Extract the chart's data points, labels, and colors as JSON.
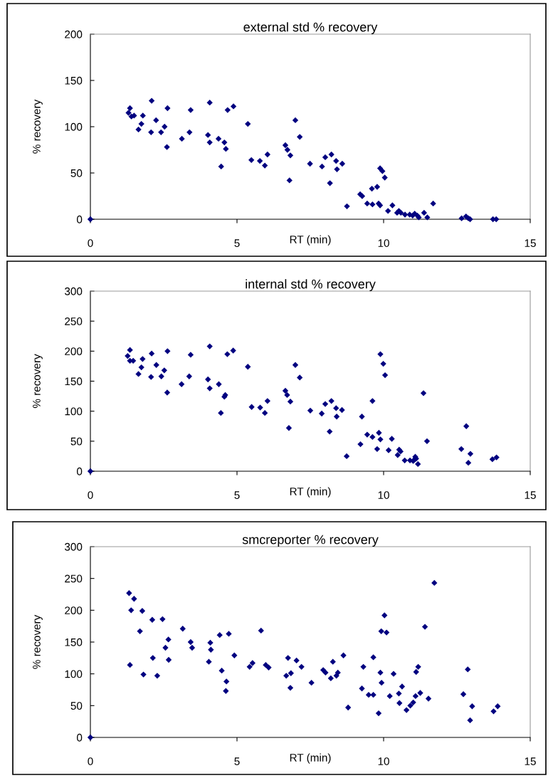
{
  "chart_data": [
    {
      "type": "scatter",
      "title": "external std % recovery",
      "xlabel": "RT (min)",
      "ylabel": "% recovery",
      "marker": "diamond",
      "color": "#000080",
      "xlim": [
        0,
        15
      ],
      "xticks": [
        0,
        5,
        10,
        15
      ],
      "ylim": [
        0,
        200
      ],
      "yticks": [
        0,
        50,
        100,
        150,
        200
      ],
      "x": [
        0,
        1.3,
        1.35,
        1.4,
        1.49,
        1.64,
        1.74,
        1.79,
        2.07,
        2.09,
        2.24,
        2.41,
        2.53,
        2.61,
        2.63,
        3.12,
        3.38,
        3.42,
        4.01,
        4.07,
        4.07,
        4.37,
        4.46,
        4.57,
        4.62,
        4.68,
        4.88,
        5.37,
        5.49,
        5.78,
        5.95,
        6.04,
        6.65,
        6.72,
        6.82,
        6.79,
        6.99,
        7.14,
        7.49,
        7.9,
        8.01,
        8.22,
        8.17,
        8.38,
        8.41,
        8.59,
        8.75,
        9.2,
        9.27,
        9.44,
        9.6,
        9.62,
        9.78,
        9.83,
        9.88,
        9.88,
        9.96,
        10.04,
        10.15,
        10.3,
        10.46,
        10.52,
        10.59,
        10.73,
        10.89,
        10.99,
        11.06,
        11.15,
        11.2,
        11.38,
        11.49,
        11.69,
        12.66,
        12.81,
        12.89,
        12.95,
        13.73,
        13.84
      ],
      "values": [
        0,
        115,
        120,
        111,
        112,
        97,
        103,
        112,
        94,
        128,
        107,
        94,
        100,
        78,
        120,
        87,
        94,
        118,
        91,
        83,
        126,
        87,
        57,
        83,
        76,
        118,
        122,
        103,
        64,
        63,
        58,
        70,
        80,
        75,
        69,
        42,
        107,
        89,
        60,
        57,
        67,
        70,
        39,
        63,
        54,
        60,
        14,
        27,
        25,
        17,
        33,
        16,
        35,
        17,
        55,
        15,
        52,
        45,
        9,
        15,
        7,
        9,
        7,
        5,
        5,
        4,
        6,
        4,
        2,
        7,
        2,
        17,
        1,
        3,
        1,
        0,
        0,
        0
      ]
    },
    {
      "type": "scatter",
      "title": "internal std % recovery",
      "xlabel": "RT (min)",
      "ylabel": "% recovery",
      "marker": "diamond",
      "color": "#000080",
      "xlim": [
        0,
        15
      ],
      "xticks": [
        0,
        5,
        10,
        15
      ],
      "ylim": [
        0,
        300
      ],
      "yticks": [
        0,
        50,
        100,
        150,
        200,
        250,
        300
      ],
      "x": [
        0,
        1.27,
        1.35,
        1.35,
        1.46,
        1.64,
        1.74,
        1.78,
        2.07,
        2.09,
        2.25,
        2.42,
        2.52,
        2.62,
        2.63,
        3.11,
        3.37,
        3.42,
        4.01,
        4.07,
        4.07,
        4.38,
        4.45,
        4.57,
        4.6,
        4.67,
        4.87,
        5.37,
        5.5,
        5.79,
        5.95,
        6.04,
        6.65,
        6.71,
        6.82,
        6.77,
        6.99,
        7.14,
        7.5,
        7.89,
        8.01,
        8.22,
        8.16,
        8.38,
        8.4,
        8.58,
        8.74,
        9.21,
        9.26,
        9.44,
        9.62,
        9.62,
        9.78,
        9.84,
        9.89,
        9.89,
        9.99,
        10.05,
        10.17,
        10.28,
        10.48,
        10.53,
        10.58,
        10.72,
        10.9,
        11.01,
        11.08,
        11.11,
        11.17,
        11.06,
        11.36,
        11.48,
        12.65,
        12.82,
        12.89,
        12.96,
        13.71,
        13.85
      ],
      "values": [
        0,
        192,
        202,
        184,
        184,
        162,
        173,
        187,
        157,
        196,
        177,
        158,
        168,
        131,
        200,
        145,
        158,
        194,
        153,
        138,
        208,
        145,
        97,
        124,
        127,
        195,
        201,
        174,
        107,
        106,
        97,
        117,
        134,
        127,
        116,
        72,
        177,
        156,
        101,
        96,
        112,
        117,
        66,
        105,
        91,
        102,
        25,
        45,
        91,
        61,
        57,
        117,
        37,
        64,
        195,
        53,
        179,
        160,
        35,
        54,
        27,
        36,
        33,
        18,
        18,
        17,
        24,
        21,
        12,
        20,
        130,
        50,
        37,
        75,
        14,
        29,
        20,
        23
      ]
    },
    {
      "type": "scatter",
      "title": "smcreporter % recovery",
      "xlabel": "RT (min)",
      "ylabel": "% recovery",
      "marker": "diamond",
      "color": "#000080",
      "xlim": [
        0,
        15
      ],
      "xticks": [
        0,
        5,
        10,
        15
      ],
      "ylim": [
        0,
        300
      ],
      "yticks": [
        0,
        50,
        100,
        150,
        200,
        250,
        300
      ],
      "x": [
        0,
        1.32,
        1.35,
        1.39,
        1.49,
        1.69,
        1.77,
        1.81,
        2.11,
        2.13,
        2.28,
        2.46,
        2.56,
        2.66,
        2.67,
        3.15,
        3.42,
        3.47,
        4.04,
        4.09,
        4.11,
        4.41,
        4.48,
        4.64,
        4.62,
        4.72,
        4.91,
        5.43,
        5.53,
        5.82,
        5.98,
        6.08,
        6.68,
        6.74,
        6.84,
        6.82,
        7.03,
        7.2,
        7.54,
        7.94,
        8.02,
        8.2,
        8.27,
        8.39,
        8.44,
        8.63,
        8.79,
        9.26,
        9.31,
        9.49,
        9.65,
        9.65,
        9.83,
        9.89,
        9.93,
        9.92,
        10.03,
        10.1,
        10.21,
        10.34,
        10.52,
        10.54,
        10.63,
        10.78,
        10.91,
        11.01,
        11.09,
        11.11,
        11.18,
        11.25,
        11.41,
        11.53,
        11.73,
        12.72,
        12.87,
        13.02,
        12.95,
        13.75,
        13.89
      ],
      "values": [
        0,
        227,
        114,
        200,
        218,
        167,
        199,
        99,
        185,
        125,
        97,
        186,
        141,
        154,
        122,
        171,
        150,
        141,
        119,
        149,
        138,
        161,
        105,
        88,
        73,
        163,
        129,
        111,
        117,
        168,
        114,
        110,
        97,
        125,
        101,
        78,
        121,
        111,
        86,
        106,
        102,
        93,
        119,
        97,
        102,
        129,
        47,
        77,
        111,
        67,
        67,
        126,
        38,
        102,
        86,
        167,
        192,
        165,
        65,
        100,
        69,
        54,
        80,
        43,
        50,
        55,
        65,
        103,
        111,
        70,
        174,
        61,
        243,
        68,
        107,
        49,
        27,
        41,
        49
      ]
    }
  ]
}
